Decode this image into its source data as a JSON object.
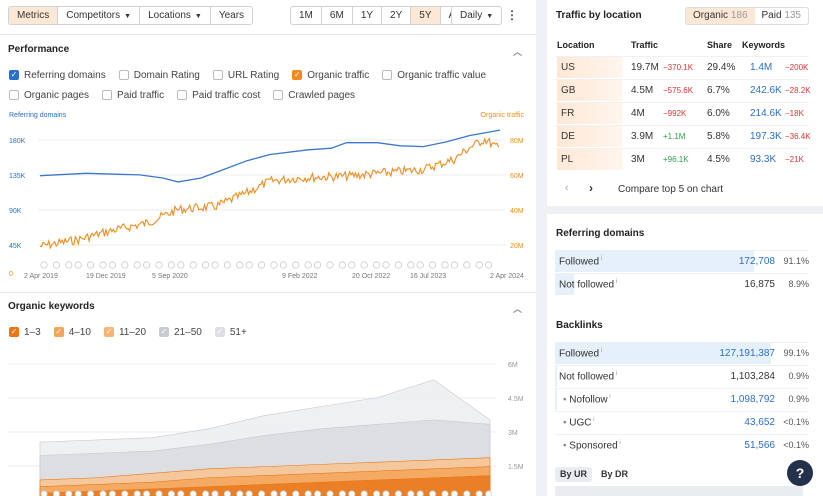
{
  "toolbar": {
    "tabs": [
      "Metrics",
      "Competitors",
      "Locations",
      "Years"
    ],
    "ranges": [
      "1M",
      "6M",
      "1Y",
      "2Y",
      "5Y",
      "All"
    ],
    "selected_range": "5Y",
    "interval": "Daily"
  },
  "performance": {
    "title": "Performance",
    "checks_row1": [
      {
        "label": "Referring domains",
        "checked": true,
        "color": "#2a6fc9"
      },
      {
        "label": "Domain Rating",
        "checked": false
      },
      {
        "label": "URL Rating",
        "checked": false
      },
      {
        "label": "Organic traffic",
        "checked": true,
        "color": "#f08c1e"
      },
      {
        "label": "Organic traffic value",
        "checked": false
      }
    ],
    "checks_row2": [
      {
        "label": "Organic pages",
        "checked": false
      },
      {
        "label": "Paid traffic",
        "checked": false
      },
      {
        "label": "Paid traffic cost",
        "checked": false
      },
      {
        "label": "Crawled pages",
        "checked": false
      }
    ]
  },
  "chart_data": [
    {
      "type": "line",
      "x_ticks": [
        "2 Apr 2019",
        "19 Dec 2019",
        "5 Sep 2020",
        "9 Feb 2022",
        "20 Oct 2022",
        "16 Jul 2023",
        "2 Apr 2024"
      ],
      "left_axis": {
        "label": "Referring domains",
        "ticks": [
          "180K",
          "135K",
          "90K",
          "45K",
          "0"
        ]
      },
      "right_axis": {
        "label": "Organic traffic",
        "ticks": [
          "80M",
          "60M",
          "40M",
          "20M"
        ]
      },
      "series": [
        {
          "name": "Referring domains",
          "color": "#3a78c8",
          "points": [
            [
              "2019-04",
              124000
            ],
            [
              "2019-10",
              127000
            ],
            [
              "2020-05",
              125000
            ],
            [
              "2020-08",
              121000
            ],
            [
              "2020-10",
              116000
            ],
            [
              "2021-01",
              121000
            ],
            [
              "2021-04",
              132000
            ],
            [
              "2021-07",
              143000
            ],
            [
              "2021-10",
              151000
            ],
            [
              "2022-03",
              157000
            ],
            [
              "2022-06",
              159000
            ],
            [
              "2022-08",
              166000
            ],
            [
              "2022-12",
              166000
            ],
            [
              "2023-03",
              162000
            ],
            [
              "2023-06",
              161000
            ],
            [
              "2023-09",
              167000
            ],
            [
              "2023-12",
              175000
            ],
            [
              "2024-04",
              182000
            ]
          ]
        },
        {
          "name": "Organic traffic",
          "color": "#f08c1e",
          "points": [
            [
              "2019-04",
              16000000
            ],
            [
              "2019-09",
              20000000
            ],
            [
              "2020-01",
              25000000
            ],
            [
              "2020-06",
              30000000
            ],
            [
              "2020-10",
              38000000
            ],
            [
              "2021-03",
              40000000
            ],
            [
              "2021-07",
              48000000
            ],
            [
              "2021-10",
              55000000
            ],
            [
              "2022-02",
              57000000
            ],
            [
              "2022-08",
              58000000
            ],
            [
              "2023-01",
              60000000
            ],
            [
              "2023-06",
              62000000
            ],
            [
              "2023-10",
              68000000
            ],
            [
              "2023-12",
              75000000
            ],
            [
              "2024-02",
              80000000
            ],
            [
              "2024-04",
              74000000
            ]
          ]
        }
      ]
    },
    {
      "type": "area",
      "right_axis": {
        "ticks": [
          "6M",
          "4.5M",
          "3M",
          "1.5M"
        ]
      },
      "series": [
        {
          "name": "1–3",
          "color": "#e8781a",
          "values": [
            0.3,
            0.4,
            0.5,
            0.6,
            0.7,
            0.8,
            0.9,
            1.0,
            1.1
          ]
        },
        {
          "name": "4–10",
          "color": "#f5a55a",
          "values": [
            0.6,
            0.7,
            0.8,
            1.0,
            1.1,
            1.2,
            1.3,
            1.4,
            1.5
          ]
        },
        {
          "name": "11–20",
          "color": "#f8c48f",
          "values": [
            0.9,
            1.0,
            1.2,
            1.4,
            1.5,
            1.6,
            1.7,
            1.8,
            1.9
          ]
        },
        {
          "name": "21–50",
          "color": "#d9dce0",
          "values": [
            2.0,
            2.1,
            2.2,
            2.5,
            2.9,
            3.2,
            3.4,
            3.6,
            3.4
          ]
        },
        {
          "name": "51+",
          "color": "#eceef1",
          "values": [
            2.6,
            2.7,
            2.8,
            3.2,
            3.8,
            4.2,
            4.6,
            5.4,
            3.6
          ]
        }
      ]
    }
  ],
  "organic_keywords": {
    "title": "Organic keywords",
    "checks": [
      {
        "label": "1–3",
        "checked": true,
        "color": "#e8781a"
      },
      {
        "label": "4–10",
        "checked": true,
        "color": "#f5a55a"
      },
      {
        "label": "11–20",
        "checked": true,
        "color": "#f8b474"
      },
      {
        "label": "21–50",
        "checked": true,
        "color": "#c8ccd2"
      },
      {
        "label": "51+",
        "checked": true,
        "color": "#dde0e4"
      }
    ]
  },
  "traffic_by_location": {
    "title": "Traffic by location",
    "organic_label": "Organic",
    "organic_count": "186",
    "paid_label": "Paid",
    "paid_count": "135",
    "headers": [
      "Location",
      "Traffic",
      "Share",
      "Keywords"
    ],
    "rows": [
      {
        "loc": "US",
        "traffic": "19.7M",
        "tdelta": "−370.1K",
        "tdir": "neg",
        "share": "29.4%",
        "kw": "1.4M",
        "kdelta": "−200K",
        "kdir": "neg"
      },
      {
        "loc": "GB",
        "traffic": "4.5M",
        "tdelta": "−575.6K",
        "tdir": "neg",
        "share": "6.7%",
        "kw": "242.6K",
        "kdelta": "−28.2K",
        "kdir": "neg"
      },
      {
        "loc": "FR",
        "traffic": "4M",
        "tdelta": "−992K",
        "tdir": "neg",
        "share": "6.0%",
        "kw": "214.6K",
        "kdelta": "−18K",
        "kdir": "neg"
      },
      {
        "loc": "DE",
        "traffic": "3.9M",
        "tdelta": "+1.1M",
        "tdir": "pos",
        "share": "5.8%",
        "kw": "197.3K",
        "kdelta": "−36.4K",
        "kdir": "neg"
      },
      {
        "loc": "PL",
        "traffic": "3M",
        "tdelta": "+96.1K",
        "tdir": "pos",
        "share": "4.5%",
        "kw": "93.3K",
        "kdelta": "−21K",
        "kdir": "neg"
      }
    ],
    "compare_label": "Compare top 5 on chart"
  },
  "referring_domains": {
    "title": "Referring domains",
    "rows": [
      {
        "label": "Followed",
        "value": "172,708",
        "pct": "91.1%",
        "fill": 0.911,
        "link": true
      },
      {
        "label": "Not followed",
        "value": "16,875",
        "pct": "8.9%",
        "fill": 0.089,
        "link": false
      }
    ]
  },
  "backlinks": {
    "title": "Backlinks",
    "rows": [
      {
        "label": "Followed",
        "value": "127,191,387",
        "pct": "99.1%",
        "fill": 0.991,
        "link": true,
        "indent": false
      },
      {
        "label": "Not followed",
        "value": "1,103,284",
        "pct": "0.9%",
        "fill": 0.009,
        "link": false,
        "indent": false
      },
      {
        "label": "Nofollow",
        "value": "1,098,792",
        "pct": "0.9%",
        "fill": 0.009,
        "link": true,
        "indent": true
      },
      {
        "label": "UGC",
        "value": "43,652",
        "pct": "<0.1%",
        "fill": 0.0,
        "link": true,
        "indent": true
      },
      {
        "label": "Sponsored",
        "value": "51,566",
        "pct": "<0.1%",
        "fill": 0.0,
        "link": true,
        "indent": true
      }
    ],
    "tabs": [
      "By UR",
      "By DR"
    ]
  },
  "help_label": "?"
}
